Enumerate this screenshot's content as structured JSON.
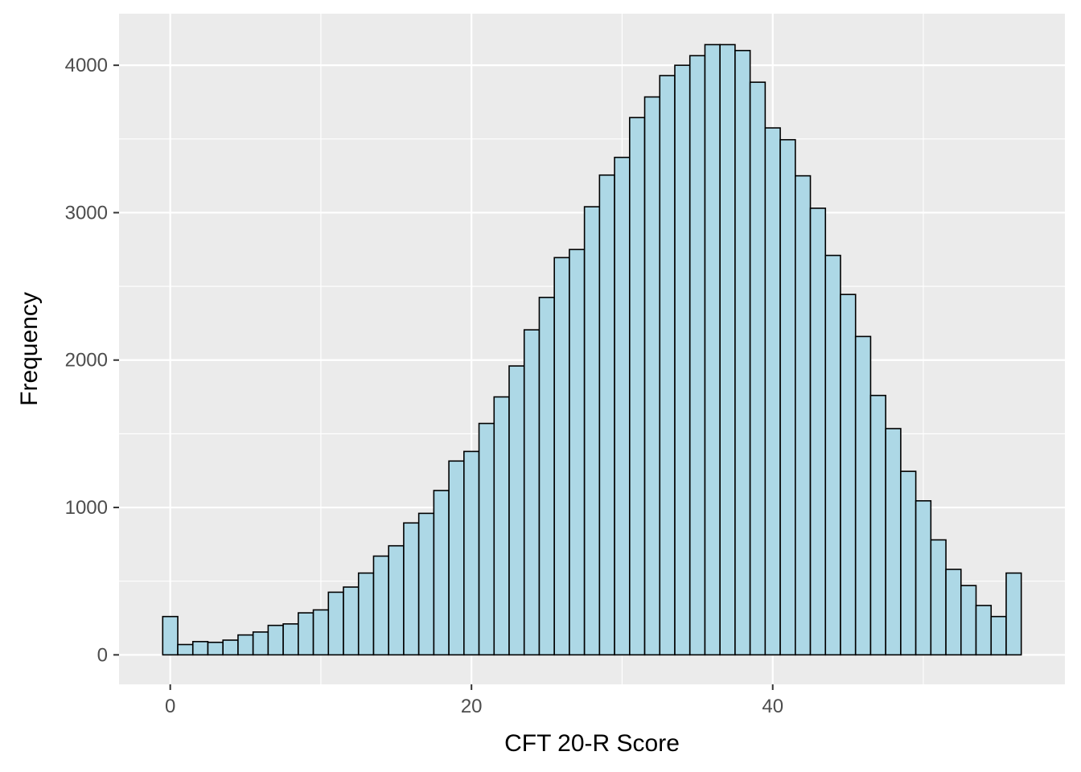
{
  "chart_data": {
    "type": "bar",
    "title": "",
    "xlabel": "CFT 20-R Score",
    "ylabel": "Frequency",
    "x": [
      0,
      1,
      2,
      3,
      4,
      5,
      6,
      7,
      8,
      9,
      10,
      11,
      12,
      13,
      14,
      15,
      16,
      17,
      18,
      19,
      20,
      21,
      22,
      23,
      24,
      25,
      26,
      27,
      28,
      29,
      30,
      31,
      32,
      33,
      34,
      35,
      36,
      37,
      38,
      39,
      40,
      41,
      42,
      43,
      44,
      45,
      46,
      47,
      48,
      49,
      50,
      51,
      52,
      53,
      54,
      55,
      56
    ],
    "values": [
      260,
      70,
      90,
      85,
      100,
      135,
      155,
      200,
      210,
      285,
      305,
      425,
      460,
      555,
      670,
      740,
      895,
      960,
      1115,
      1315,
      1380,
      1570,
      1750,
      1960,
      2205,
      2425,
      2695,
      2750,
      3040,
      3255,
      3375,
      3645,
      3785,
      3930,
      4000,
      4065,
      4140,
      4140,
      4100,
      3885,
      3575,
      3495,
      3250,
      3030,
      2710,
      2445,
      2160,
      1760,
      1535,
      1245,
      1045,
      780,
      580,
      470,
      335,
      260,
      555
    ],
    "xlim": [
      -3.4,
      59.4
    ],
    "ylim": [
      -200,
      4350
    ],
    "x_ticks": [
      0,
      20,
      40
    ],
    "y_ticks": [
      0,
      1000,
      2000,
      3000,
      4000
    ],
    "x_tick_labels": [
      "0",
      "20",
      "40"
    ],
    "y_tick_labels": [
      "0",
      "1000",
      "2000",
      "3000",
      "4000"
    ],
    "grid": true,
    "colors": {
      "panel_background": "#ebebeb",
      "grid_line": "#ffffff",
      "bar_fill": "#add8e6",
      "bar_outline": "#000000"
    }
  }
}
